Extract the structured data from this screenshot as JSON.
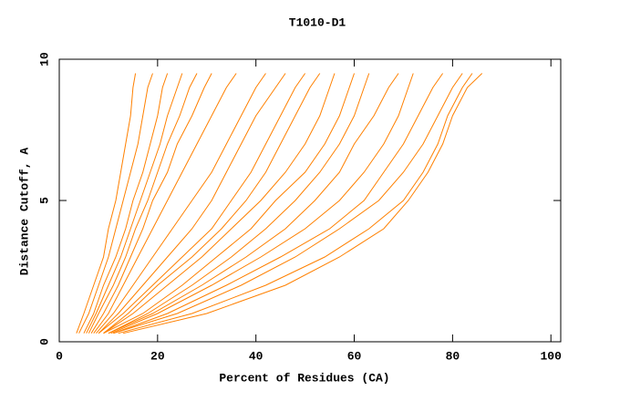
{
  "chart_data": {
    "type": "line",
    "title": "T1010-D1",
    "x_label": "Percent of Residues (CA)",
    "y_label": "Distance Cutoff, A",
    "color": "#ff8000",
    "xlim": [
      0,
      102
    ],
    "xticks": [
      0,
      20,
      40,
      60,
      80,
      100
    ],
    "ylim": [
      0,
      10
    ],
    "yticks": [
      0,
      5,
      10
    ],
    "y": [
      0.3,
      1,
      2,
      3,
      4,
      5,
      6,
      7,
      8,
      9,
      9.5
    ],
    "series": [
      {
        "x": [
          3.5,
          5,
          7,
          9,
          10,
          11.5,
          12.5,
          13.5,
          14.5,
          15,
          15.5
        ]
      },
      {
        "x": [
          4,
          6,
          8,
          10,
          11.5,
          13,
          14.5,
          16,
          17,
          18,
          19
        ]
      },
      {
        "x": [
          5,
          7,
          9,
          11.5,
          13.5,
          15,
          17,
          18.5,
          20,
          21,
          22
        ]
      },
      {
        "x": [
          5.5,
          7.5,
          10,
          12.5,
          14.5,
          16.5,
          18.5,
          20.5,
          22,
          24,
          25
        ]
      },
      {
        "x": [
          6,
          8,
          11,
          13.5,
          15.5,
          18,
          20,
          22,
          24.5,
          26.5,
          28
        ]
      },
      {
        "x": [
          6.5,
          9,
          12,
          14.5,
          17,
          19,
          22,
          24,
          27,
          29.5,
          31
        ]
      },
      {
        "x": [
          7,
          10,
          13,
          16,
          19,
          22,
          25,
          28,
          31,
          34,
          36
        ]
      },
      {
        "x": [
          7.5,
          11,
          15,
          19,
          23,
          27,
          31,
          34,
          37,
          40,
          42
        ]
      },
      {
        "x": [
          8,
          12,
          17,
          22,
          27,
          31,
          34,
          37,
          40,
          44,
          46
        ]
      },
      {
        "x": [
          8,
          13,
          19,
          25,
          31,
          35,
          39,
          42,
          45,
          48,
          50
        ]
      },
      {
        "x": [
          9,
          14,
          20,
          27,
          33,
          38,
          42,
          45,
          48,
          51,
          53
        ]
      },
      {
        "x": [
          9,
          15,
          22,
          29,
          35,
          41,
          46,
          50,
          53,
          55,
          56
        ]
      },
      {
        "x": [
          9,
          17,
          25,
          32,
          39,
          44,
          50,
          54,
          57,
          59,
          60
        ]
      },
      {
        "x": [
          10,
          18,
          27,
          35,
          42,
          48,
          53,
          57,
          60,
          62,
          63
        ]
      },
      {
        "x": [
          10,
          19,
          29,
          38,
          46,
          52,
          57,
          60,
          64,
          67,
          69
        ]
      },
      {
        "x": [
          10.5,
          20,
          31,
          41,
          50,
          57,
          62,
          66,
          69,
          71,
          72
        ]
      },
      {
        "x": [
          11,
          22,
          34,
          45,
          55,
          62,
          66,
          70,
          73,
          76,
          78
        ]
      },
      {
        "x": [
          11,
          24,
          37,
          48,
          57,
          65,
          70,
          74,
          77,
          80,
          82
        ]
      },
      {
        "x": [
          12,
          27,
          42,
          54,
          63,
          70,
          74,
          77,
          79,
          82,
          84
        ]
      },
      {
        "x": [
          13,
          30,
          46,
          57,
          66,
          71,
          75,
          78,
          80,
          83,
          86
        ]
      }
    ]
  }
}
